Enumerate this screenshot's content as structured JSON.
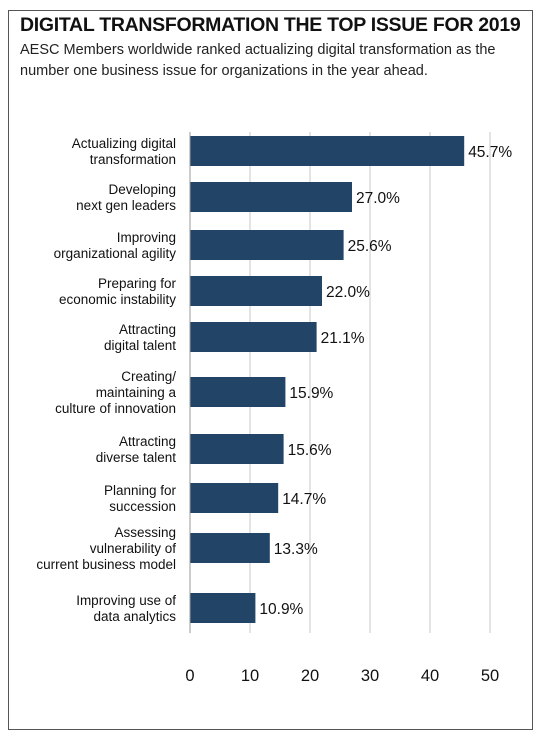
{
  "title": "DIGITAL TRANSFORMATION THE TOP ISSUE FOR 2019",
  "subtitle": "AESC Members worldwide ranked actualizing digital transformation as the number one business issue for organizations in the year ahead.",
  "colors": {
    "bar": "#224466",
    "grid": "#c8c8c8",
    "frame": "#555555"
  },
  "chart_data": {
    "type": "bar",
    "orientation": "horizontal",
    "title": "DIGITAL TRANSFORMATION THE TOP ISSUE FOR 2019",
    "subtitle": "AESC Members worldwide ranked actualizing digital transformation as the number one business issue for organizations in the year ahead.",
    "xlabel": "",
    "ylabel": "",
    "xlim": [
      0,
      50
    ],
    "xticks": [
      "0",
      "10",
      "20",
      "30",
      "40",
      "50"
    ],
    "grid": "vertical",
    "categories": [
      [
        "Actualizing digital",
        "transformation"
      ],
      [
        "Developing",
        "next gen leaders"
      ],
      [
        "Improving",
        "organizational agility"
      ],
      [
        "Preparing for",
        "economic instability"
      ],
      [
        "Attracting",
        "digital talent"
      ],
      [
        "Creating/",
        "maintaining a",
        "culture of innovation"
      ],
      [
        "Attracting",
        "diverse talent"
      ],
      [
        "Planning for",
        "succession"
      ],
      [
        "Assessing",
        "vulnerability of",
        "current business model"
      ],
      [
        "Improving use of",
        "data analytics"
      ]
    ],
    "values": [
      45.7,
      27.0,
      25.6,
      22.0,
      21.1,
      15.9,
      15.6,
      14.7,
      13.3,
      10.9
    ],
    "value_labels": [
      "45.7%",
      "27.0%",
      "25.6%",
      "22.0%",
      "21.1%",
      "15.9%",
      "15.6%",
      "14.7%",
      "13.3%",
      "10.9%"
    ]
  }
}
